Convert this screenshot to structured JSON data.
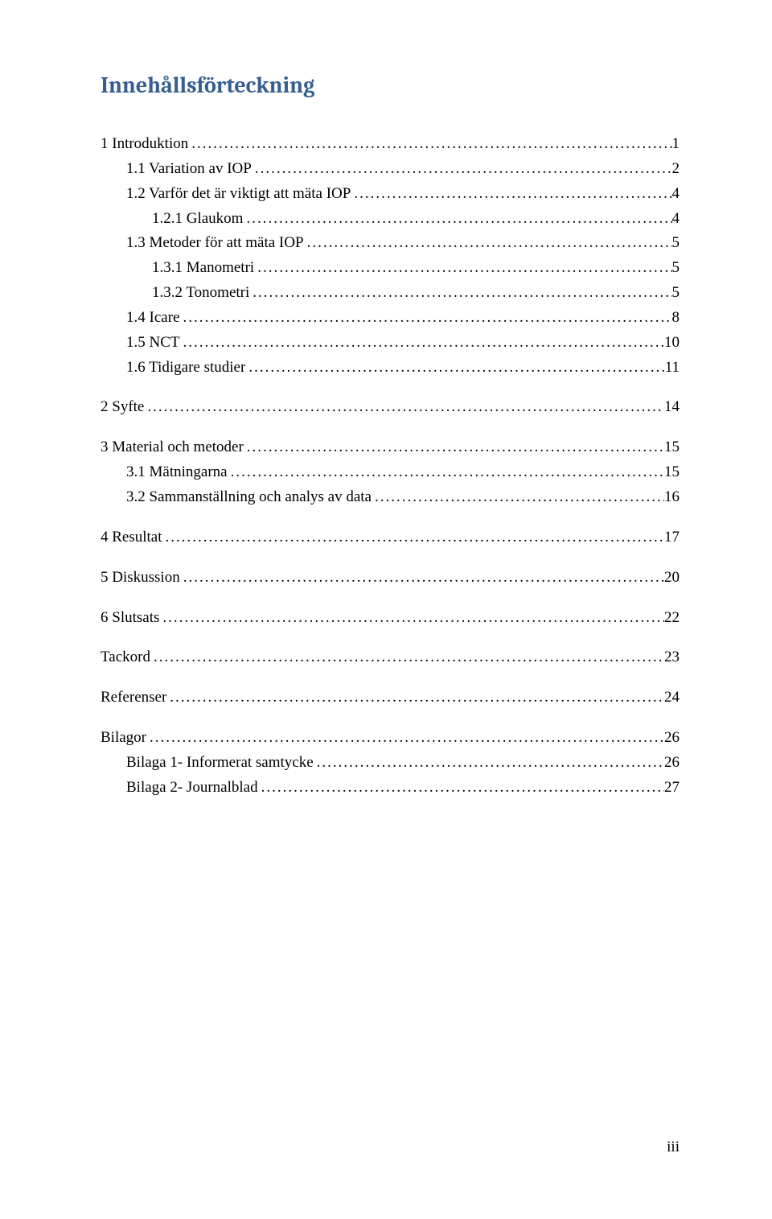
{
  "title": {
    "text": "Innehållsförteckning",
    "color": "#365f91",
    "fontsize_pt": 21
  },
  "body_fontsize_pt": 14,
  "entries": [
    {
      "label": "1 Introduktion",
      "page": "1",
      "level": 0,
      "group_start": true
    },
    {
      "label": "1.1 Variation av IOP",
      "page": "2",
      "level": 1
    },
    {
      "label": "1.2 Varför det är viktigt att mäta IOP",
      "page": "4",
      "level": 1
    },
    {
      "label": "1.2.1 Glaukom",
      "page": "4",
      "level": 2
    },
    {
      "label": "1.3 Metoder för att mäta IOP",
      "page": "5",
      "level": 1
    },
    {
      "label": "1.3.1 Manometri",
      "page": "5",
      "level": 2
    },
    {
      "label": "1.3.2 Tonometri",
      "page": "5",
      "level": 2
    },
    {
      "label": "1.4 Icare",
      "page": "8",
      "level": 1
    },
    {
      "label": "1.5 NCT",
      "page": "10",
      "level": 1
    },
    {
      "label": "1.6 Tidigare studier",
      "page": "11",
      "level": 1
    },
    {
      "label": "2 Syfte",
      "page": "14",
      "level": 0,
      "group_start": true
    },
    {
      "label": "3 Material och metoder",
      "page": "15",
      "level": 0,
      "group_start": true
    },
    {
      "label": "3.1 Mätningarna",
      "page": "15",
      "level": 1
    },
    {
      "label": "3.2 Sammanställning och analys av data",
      "page": "16",
      "level": 1
    },
    {
      "label": "4 Resultat",
      "page": "17",
      "level": 0,
      "group_start": true
    },
    {
      "label": "5 Diskussion",
      "page": "20",
      "level": 0,
      "group_start": true
    },
    {
      "label": "6 Slutsats",
      "page": "22",
      "level": 0,
      "group_start": true
    },
    {
      "label": "Tackord",
      "page": "23",
      "level": 0,
      "group_start": true
    },
    {
      "label": "Referenser",
      "page": "24",
      "level": 0,
      "group_start": true
    },
    {
      "label": "Bilagor",
      "page": "26",
      "level": 0,
      "group_start": true
    },
    {
      "label": "Bilaga 1- Informerat samtycke",
      "page": "26",
      "level": 1
    },
    {
      "label": "Bilaga 2- Journalblad",
      "page": "27",
      "level": 1
    }
  ],
  "footer_page_number": "iii"
}
